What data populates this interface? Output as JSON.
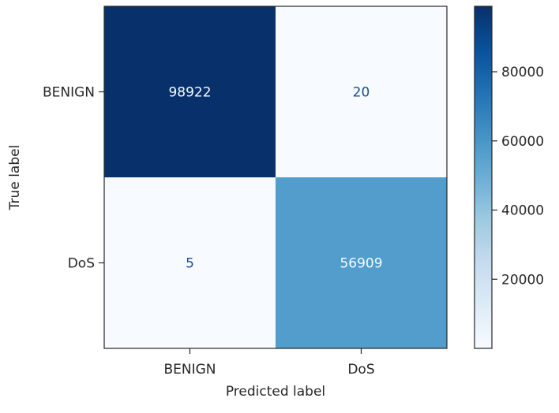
{
  "chart_data": {
    "type": "heatmap",
    "title": "",
    "xlabel": "Predicted label",
    "ylabel": "True label",
    "x_categories": [
      "BENIGN",
      "DoS"
    ],
    "y_categories": [
      "BENIGN",
      "DoS"
    ],
    "values": [
      [
        98922,
        20
      ],
      [
        5,
        56909
      ]
    ],
    "colormap": "Blues",
    "color_range": [
      5,
      98922
    ],
    "colors": {
      "cmap_low": "#f7fbff",
      "cmap_high": "#08306b",
      "text_light": "#f7fbff",
      "text_dark": "#1a4f8f"
    },
    "colorbar": {
      "position": "right",
      "ticks": [
        20000,
        40000,
        60000,
        80000
      ],
      "tick_labels": [
        "20000",
        "40000",
        "60000",
        "80000"
      ]
    },
    "grid": false
  }
}
